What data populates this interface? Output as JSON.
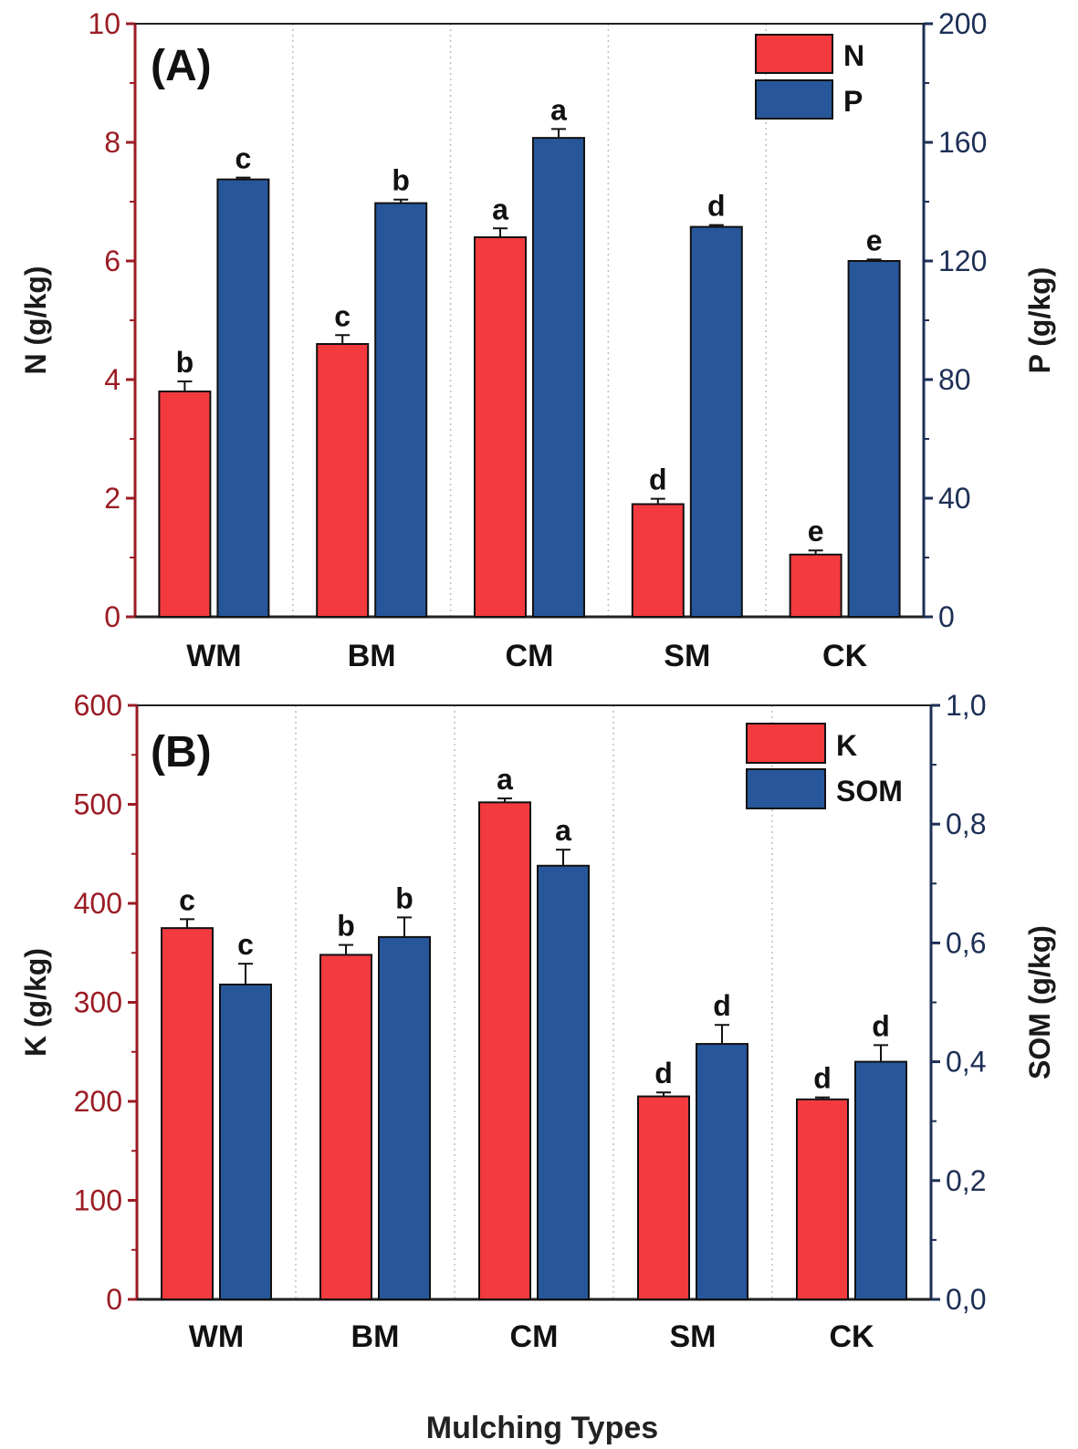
{
  "figure": {
    "shared_xlabel": "Mulching Types"
  },
  "colors": {
    "left_axis": "#9b1c24",
    "right_axis": "#1d2f55",
    "series_red": "#f23a3f",
    "series_blue": "#27579a"
  },
  "chart_data": [
    {
      "type": "bar",
      "panel_label": "(A)",
      "categories": [
        "WM",
        "BM",
        "CM",
        "SM",
        "CK"
      ],
      "series": [
        {
          "name": "N",
          "axis": "left",
          "values": [
            3.8,
            4.6,
            6.4,
            1.9,
            1.05
          ],
          "errors": [
            0.17,
            0.15,
            0.15,
            0.09,
            0.07
          ],
          "letters": [
            "b",
            "c",
            "a",
            "d",
            "e"
          ]
        },
        {
          "name": "P",
          "axis": "right",
          "values": [
            147.5,
            139.5,
            161.5,
            131.5,
            120.0
          ],
          "errors": [
            0.6,
            1.2,
            3.0,
            0.6,
            0.5
          ],
          "letters": [
            "c",
            "b",
            "a",
            "d",
            "e"
          ]
        }
      ],
      "left_axis": {
        "label": "N (g/kg)",
        "lim": [
          0,
          10
        ],
        "ticks": [
          "0",
          "2",
          "4",
          "6",
          "8",
          "10"
        ]
      },
      "right_axis": {
        "label": "P (g/kg)",
        "lim": [
          0,
          200
        ],
        "ticks": [
          "0",
          "40",
          "80",
          "120",
          "160",
          "200"
        ]
      },
      "legend_position": "top-right"
    },
    {
      "type": "bar",
      "panel_label": "(B)",
      "categories": [
        "WM",
        "BM",
        "CM",
        "SM",
        "CK"
      ],
      "series": [
        {
          "name": "K",
          "axis": "left",
          "values": [
            375,
            348,
            502,
            205,
            202
          ],
          "errors": [
            9,
            10,
            4,
            4,
            2
          ],
          "letters": [
            "c",
            "b",
            "a",
            "d",
            "d"
          ]
        },
        {
          "name": "SOM",
          "axis": "right",
          "values": [
            0.53,
            0.61,
            0.73,
            0.43,
            0.4
          ],
          "errors": [
            0.035,
            0.033,
            0.027,
            0.032,
            0.028
          ],
          "letters": [
            "c",
            "b",
            "a",
            "d",
            "d"
          ]
        }
      ],
      "left_axis": {
        "label": "K (g/kg)",
        "lim": [
          0,
          600
        ],
        "ticks": [
          "0",
          "100",
          "200",
          "300",
          "400",
          "500",
          "600"
        ]
      },
      "right_axis": {
        "label": "SOM (g/kg)",
        "lim": [
          0,
          1.0
        ],
        "ticks": [
          "0,0",
          "0,2",
          "0,4",
          "0,6",
          "0,8",
          "1,0"
        ]
      },
      "legend_position": "top-right"
    }
  ]
}
